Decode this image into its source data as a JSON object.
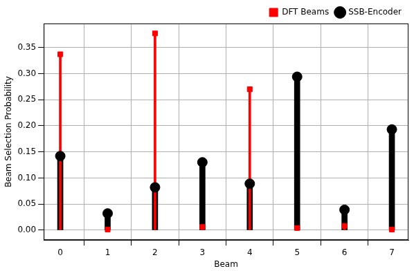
{
  "chart_data": {
    "type": "stem",
    "x_label": "Beam",
    "y_label": "Beam Selection Probability",
    "x": [
      0,
      1,
      2,
      3,
      4,
      5,
      6,
      7
    ],
    "series": [
      {
        "name": "SSB-Encoder",
        "color": "#000000",
        "marker": "circle",
        "values": [
          0.142,
          0.032,
          0.082,
          0.13,
          0.089,
          0.294,
          0.039,
          0.193
        ]
      },
      {
        "name": "DFT Beams",
        "color": "#ff0000",
        "marker": "square",
        "values": [
          0.337,
          0.001,
          0.377,
          0.006,
          0.27,
          0.004,
          0.008,
          0.001
        ]
      }
    ],
    "xlim": [
      -0.35,
      7.35
    ],
    "xticks": [
      0,
      1,
      2,
      3,
      4,
      5,
      6,
      7
    ],
    "ylim": [
      -0.019,
      0.396
    ],
    "yticks": [
      {
        "value": 0,
        "label": "0.00"
      },
      0.05,
      {
        "value": 0.1,
        "label": "0.10"
      },
      0.15,
      {
        "value": 0.2,
        "label": "0.20"
      },
      0.25,
      {
        "value": 0.3,
        "label": "0.30"
      },
      0.35
    ],
    "grid": true,
    "legend": "upper right"
  }
}
